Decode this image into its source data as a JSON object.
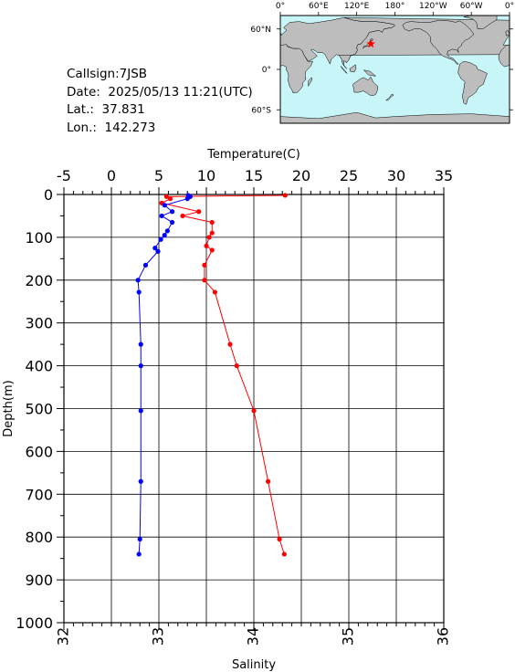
{
  "info": {
    "callsign": "Callsign:7JSB",
    "date": "Date:  2025/05/13 11:21(UTC)",
    "lat": "Lat.:  37.831",
    "lon": "Lon.:  142.273"
  },
  "map": {
    "lon_labels": [
      "0°",
      "60°E",
      "120°E",
      "180°",
      "120°W",
      "60°W",
      "0°"
    ],
    "lat_labels": [
      "60°N",
      "0°",
      "60°S"
    ],
    "ocean_color": "#c8f5f8",
    "land_color": "#bdbdbd",
    "marker_color": "#ff0000",
    "marker": {
      "lon": 142.273,
      "lat": 37.831
    }
  },
  "chart_data": {
    "type": "line",
    "title": "",
    "ylabel": "Depth(m)",
    "ylim": [
      0,
      1000
    ],
    "y_ticks": [
      0,
      100,
      200,
      300,
      400,
      500,
      600,
      700,
      800,
      900,
      1000
    ],
    "y_inverted": true,
    "top_axis": {
      "label": "Temperature(C)",
      "range": [
        -5,
        35
      ],
      "ticks": [
        -5,
        0,
        5,
        10,
        15,
        20,
        25,
        30,
        35
      ]
    },
    "bottom_axis": {
      "label": "Salinity",
      "range": [
        32,
        36
      ],
      "ticks": [
        32,
        33,
        34,
        35,
        36
      ]
    },
    "grid": true,
    "series": [
      {
        "axis": "top",
        "color": "#ff0000",
        "points": [
          {
            "x": 18.3,
            "depth": 2
          },
          {
            "x": 5.8,
            "depth": 5
          },
          {
            "x": 6.2,
            "depth": 10
          },
          {
            "x": 5.3,
            "depth": 20
          },
          {
            "x": 9.2,
            "depth": 40
          },
          {
            "x": 7.5,
            "depth": 50
          },
          {
            "x": 10.6,
            "depth": 65
          },
          {
            "x": 10.6,
            "depth": 90
          },
          {
            "x": 10.3,
            "depth": 100
          },
          {
            "x": 10.0,
            "depth": 120
          },
          {
            "x": 10.6,
            "depth": 130
          },
          {
            "x": 9.8,
            "depth": 165
          },
          {
            "x": 9.8,
            "depth": 200
          },
          {
            "x": 10.9,
            "depth": 228
          },
          {
            "x": 12.5,
            "depth": 350
          },
          {
            "x": 13.2,
            "depth": 400
          },
          {
            "x": 15.0,
            "depth": 505
          },
          {
            "x": 16.5,
            "depth": 670
          },
          {
            "x": 17.7,
            "depth": 805
          },
          {
            "x": 18.2,
            "depth": 840
          }
        ]
      },
      {
        "axis": "bottom",
        "color": "#0000ff",
        "points": [
          {
            "x": 33.31,
            "depth": 2
          },
          {
            "x": 33.33,
            "depth": 5
          },
          {
            "x": 33.3,
            "depth": 10
          },
          {
            "x": 33.06,
            "depth": 25
          },
          {
            "x": 33.14,
            "depth": 40
          },
          {
            "x": 33.03,
            "depth": 50
          },
          {
            "x": 33.14,
            "depth": 65
          },
          {
            "x": 33.09,
            "depth": 85
          },
          {
            "x": 33.06,
            "depth": 95
          },
          {
            "x": 33.02,
            "depth": 105
          },
          {
            "x": 32.96,
            "depth": 125
          },
          {
            "x": 32.99,
            "depth": 133
          },
          {
            "x": 32.86,
            "depth": 165
          },
          {
            "x": 32.78,
            "depth": 200
          },
          {
            "x": 32.79,
            "depth": 228
          },
          {
            "x": 32.81,
            "depth": 350
          },
          {
            "x": 32.81,
            "depth": 400
          },
          {
            "x": 32.81,
            "depth": 505
          },
          {
            "x": 32.81,
            "depth": 670
          },
          {
            "x": 32.8,
            "depth": 805
          },
          {
            "x": 32.79,
            "depth": 840
          }
        ]
      }
    ]
  }
}
